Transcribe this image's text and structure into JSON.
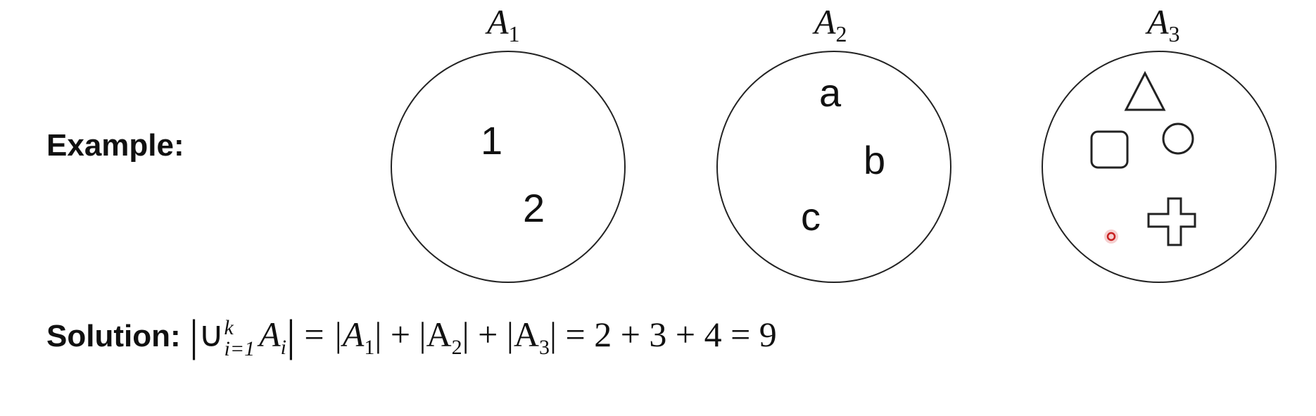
{
  "example_label": "Example:",
  "sets": [
    {
      "name": "A",
      "index": "1",
      "elements": [
        "1",
        "2"
      ]
    },
    {
      "name": "A",
      "index": "2",
      "elements": [
        "a",
        "b",
        "c"
      ]
    },
    {
      "name": "A",
      "index": "3",
      "elements": [
        "triangle",
        "square",
        "circle",
        "plus"
      ]
    }
  ],
  "solution": {
    "label": "Solution:",
    "union_symbol": "∪",
    "upper_limit": "k",
    "lower_limit": "i=1",
    "set_symbol": "A",
    "set_sub": "i",
    "equals": "=",
    "terms": [
      "|A",
      "1",
      "| + |A",
      "2",
      "| + |A",
      "3",
      "|"
    ],
    "arithmetic": "= 2 + 3 + 4 = 9"
  }
}
